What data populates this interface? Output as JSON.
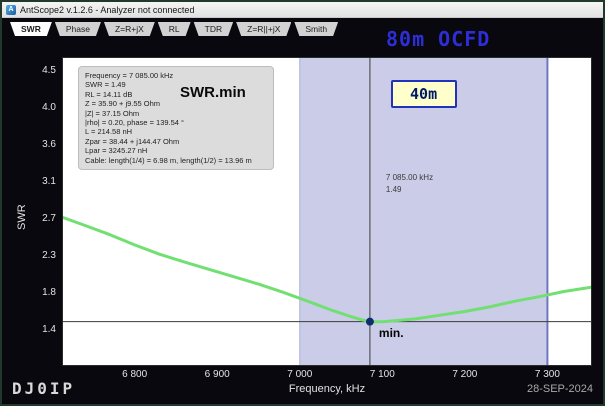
{
  "window": {
    "title": "AntScope2 v.1.2.6 - Analyzer not connected",
    "app_icon_letter": "A"
  },
  "tabs": [
    {
      "label": "SWR",
      "selected": true
    },
    {
      "label": "Phase",
      "selected": false
    },
    {
      "label": "Z=R+jX",
      "selected": false
    },
    {
      "label": "RL",
      "selected": false
    },
    {
      "label": "TDR",
      "selected": false
    },
    {
      "label": "Z=R||+jX",
      "selected": false
    },
    {
      "label": "Smith",
      "selected": false
    }
  ],
  "annotations": {
    "chart_label": "80m OCFD",
    "swr_min_label": "SWR.min",
    "band_label": "40m",
    "min_marker_label": "min.",
    "callsign": "DJ0IP",
    "date": "28-SEP-2024"
  },
  "cursor_readout": {
    "freq": "7 085.00 kHz",
    "swr": "1.49"
  },
  "info_box": {
    "lines": [
      "Frequency = 7 085.00 kHz",
      "SWR = 1.49",
      "RL = 14.11 dB",
      "Z = 35.90 + j9.55 Ohm",
      "|Z| = 37.15 Ohm",
      "|rho| = 0.20, phase = 139.54 °",
      "L = 214.58 nH",
      "Zpar = 38.44 + j144.47 Ohm",
      "Lpar = 3245.27 nH",
      "Cable: length(1/4) = 6.98 m, length(1/2) = 13.96 m"
    ]
  },
  "colors": {
    "curve": "#72df72",
    "band": "#cbcce8",
    "band_edge_right": "#6f77be",
    "band_edge_left": "#aab0d8",
    "crosshair": "#3c3c3c",
    "marker": "#0d2f6e",
    "chart_label_blue": "#2e2ed8",
    "band_label_bg": "#ffffcc",
    "band_label_border": "#2233bb"
  },
  "chart_data": {
    "type": "line",
    "title": "80m OCFD",
    "xlabel": "Frequency, kHz",
    "ylabel": "SWR",
    "x_range": [
      6712,
      7354
    ],
    "x_ticks": [
      {
        "value": 6800,
        "label": "6 800"
      },
      {
        "value": 6900,
        "label": "6 900"
      },
      {
        "value": 7000,
        "label": "7 000"
      },
      {
        "value": 7100,
        "label": "7 100"
      },
      {
        "value": 7200,
        "label": "7 200"
      },
      {
        "value": 7300,
        "label": "7 300"
      }
    ],
    "y_ticks": [
      4.5,
      4.0,
      3.6,
      3.1,
      2.7,
      2.3,
      1.8,
      1.4
    ],
    "band": {
      "from": 7000,
      "to": 7300,
      "label": "40m"
    },
    "cursor": {
      "freq": 7085,
      "swr": 1.49
    },
    "min_point": {
      "freq": 7085,
      "swr": 1.49,
      "label": "min."
    },
    "series": [
      {
        "name": "SWR",
        "points": [
          [
            6712,
            2.72
          ],
          [
            6740,
            2.63
          ],
          [
            6770,
            2.53
          ],
          [
            6800,
            2.42
          ],
          [
            6830,
            2.32
          ],
          [
            6860,
            2.22
          ],
          [
            6890,
            2.12
          ],
          [
            6920,
            2.02
          ],
          [
            6950,
            1.92
          ],
          [
            6980,
            1.81
          ],
          [
            7010,
            1.71
          ],
          [
            7040,
            1.61
          ],
          [
            7060,
            1.55
          ],
          [
            7075,
            1.51
          ],
          [
            7085,
            1.49
          ],
          [
            7100,
            1.49
          ],
          [
            7115,
            1.5
          ],
          [
            7140,
            1.52
          ],
          [
            7170,
            1.56
          ],
          [
            7200,
            1.6
          ],
          [
            7230,
            1.65
          ],
          [
            7260,
            1.71
          ],
          [
            7290,
            1.76
          ],
          [
            7320,
            1.82
          ],
          [
            7354,
            1.88
          ]
        ]
      }
    ]
  }
}
